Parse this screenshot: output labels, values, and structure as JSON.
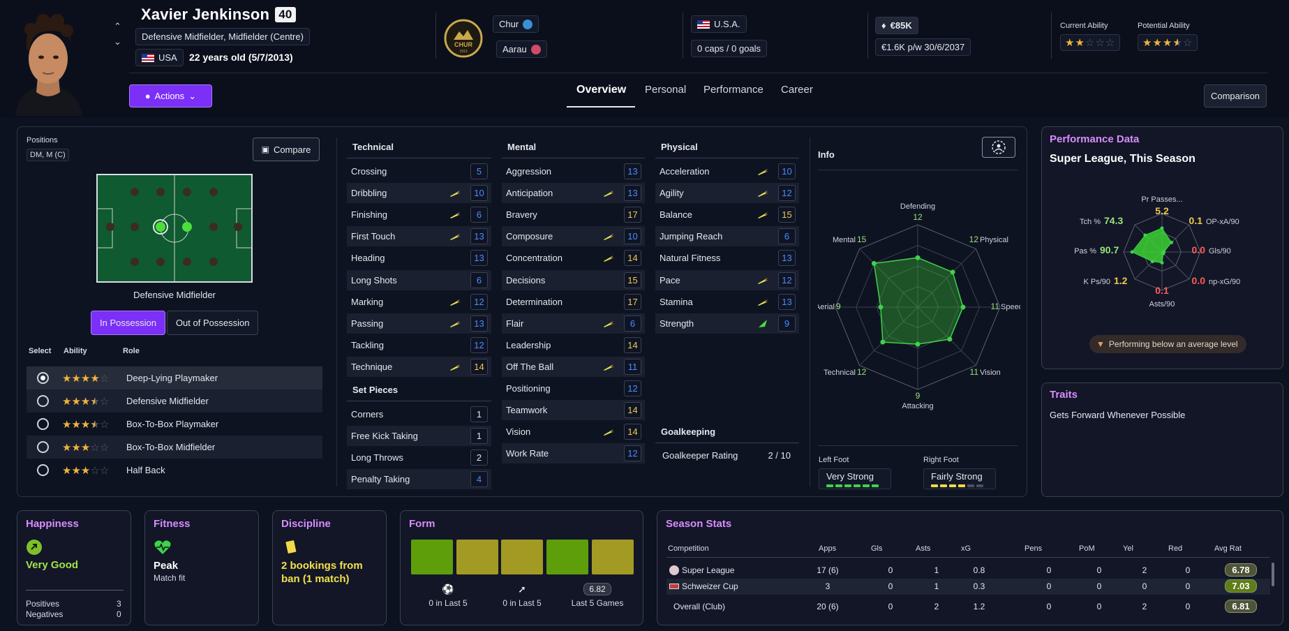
{
  "player": {
    "name": "Xavier Jenkinson",
    "overall": "40",
    "positions": "Defensive Midfielder, Midfielder (Centre)",
    "nation": "USA",
    "age": "22 years old (5/7/2013)"
  },
  "club": {
    "logo_text": "CHUR",
    "logo_year": "1913",
    "current_club": "Chur",
    "loan_club": "Aarau"
  },
  "international": {
    "nation": "U.S.A.",
    "caps": "0 caps / 0 goals"
  },
  "contract": {
    "value": "€85K",
    "wage": "€1.6K p/w 30/6/2037"
  },
  "ability": {
    "current_label": "Current Ability",
    "potential_label": "Potential Ability",
    "current_stars": 2,
    "potential_stars": 3.5
  },
  "actions_label": "Actions",
  "tabs": [
    {
      "label": "Overview",
      "active": true
    },
    {
      "label": "Personal",
      "active": false
    },
    {
      "label": "Performance",
      "active": false
    },
    {
      "label": "Career",
      "active": false
    }
  ],
  "comparison_label": "Comparison",
  "positions_panel": {
    "label": "Positions",
    "chip": "DM, M (C)",
    "compare_label": "Compare",
    "caption": "Defensive Midfielder",
    "in_possession": "In Possession",
    "out_possession": "Out of Possession",
    "head_select": "Select",
    "head_ability": "Ability",
    "head_role": "Role",
    "roles": [
      {
        "name": "Deep-Lying Playmaker",
        "stars": 4,
        "selected": true
      },
      {
        "name": "Defensive Midfielder",
        "stars": 3.5,
        "selected": false
      },
      {
        "name": "Box-To-Box Playmaker",
        "stars": 3.5,
        "selected": false
      },
      {
        "name": "Box-To-Box Midfielder",
        "stars": 3,
        "selected": false
      },
      {
        "name": "Half Back",
        "stars": 3,
        "selected": false
      }
    ]
  },
  "attributes": {
    "technical_title": "Technical",
    "technical": [
      {
        "name": "Crossing",
        "value": "5",
        "color": "blue",
        "arrow": ""
      },
      {
        "name": "Dribbling",
        "value": "10",
        "color": "blue",
        "arrow": "up"
      },
      {
        "name": "Finishing",
        "value": "6",
        "color": "blue",
        "arrow": "up"
      },
      {
        "name": "First Touch",
        "value": "13",
        "color": "blue",
        "arrow": "up"
      },
      {
        "name": "Heading",
        "value": "13",
        "color": "blue",
        "arrow": ""
      },
      {
        "name": "Long Shots",
        "value": "6",
        "color": "blue",
        "arrow": ""
      },
      {
        "name": "Marking",
        "value": "12",
        "color": "blue",
        "arrow": "up"
      },
      {
        "name": "Passing",
        "value": "13",
        "color": "blue",
        "arrow": "up"
      },
      {
        "name": "Tackling",
        "value": "12",
        "color": "blue",
        "arrow": ""
      },
      {
        "name": "Technique",
        "value": "14",
        "color": "yellow",
        "arrow": "up"
      }
    ],
    "setpieces_title": "Set Pieces",
    "setpieces": [
      {
        "name": "Corners",
        "value": "1",
        "color": "white",
        "arrow": ""
      },
      {
        "name": "Free Kick Taking",
        "value": "1",
        "color": "white",
        "arrow": ""
      },
      {
        "name": "Long Throws",
        "value": "2",
        "color": "white",
        "arrow": ""
      },
      {
        "name": "Penalty Taking",
        "value": "4",
        "color": "blue",
        "arrow": ""
      }
    ],
    "mental_title": "Mental",
    "mental": [
      {
        "name": "Aggression",
        "value": "13",
        "color": "blue",
        "arrow": ""
      },
      {
        "name": "Anticipation",
        "value": "13",
        "color": "blue",
        "arrow": "up"
      },
      {
        "name": "Bravery",
        "value": "17",
        "color": "yellow",
        "arrow": ""
      },
      {
        "name": "Composure",
        "value": "10",
        "color": "blue",
        "arrow": "up"
      },
      {
        "name": "Concentration",
        "value": "14",
        "color": "yellow",
        "arrow": "up"
      },
      {
        "name": "Decisions",
        "value": "15",
        "color": "yellow",
        "arrow": ""
      },
      {
        "name": "Determination",
        "value": "17",
        "color": "yellow",
        "arrow": ""
      },
      {
        "name": "Flair",
        "value": "6",
        "color": "blue",
        "arrow": "up"
      },
      {
        "name": "Leadership",
        "value": "14",
        "color": "yellow",
        "arrow": ""
      },
      {
        "name": "Off The Ball",
        "value": "11",
        "color": "blue",
        "arrow": "up"
      },
      {
        "name": "Positioning",
        "value": "12",
        "color": "blue",
        "arrow": ""
      },
      {
        "name": "Teamwork",
        "value": "14",
        "color": "yellow",
        "arrow": ""
      },
      {
        "name": "Vision",
        "value": "14",
        "color": "yellow",
        "arrow": "up"
      },
      {
        "name": "Work Rate",
        "value": "12",
        "color": "blue",
        "arrow": ""
      }
    ],
    "physical_title": "Physical",
    "physical": [
      {
        "name": "Acceleration",
        "value": "10",
        "color": "blue",
        "arrow": "up"
      },
      {
        "name": "Agility",
        "value": "12",
        "color": "blue",
        "arrow": "up"
      },
      {
        "name": "Balance",
        "value": "15",
        "color": "yellow",
        "arrow": "up"
      },
      {
        "name": "Jumping Reach",
        "value": "6",
        "color": "blue",
        "arrow": ""
      },
      {
        "name": "Natural Fitness",
        "value": "13",
        "color": "blue",
        "arrow": ""
      },
      {
        "name": "Pace",
        "value": "12",
        "color": "blue",
        "arrow": "up"
      },
      {
        "name": "Stamina",
        "value": "13",
        "color": "blue",
        "arrow": "up"
      },
      {
        "name": "Strength",
        "value": "9",
        "color": "blue",
        "arrow": "up-green"
      }
    ],
    "goalkeeping_title": "Goalkeeping",
    "goalkeeper_label": "Goalkeeper Rating",
    "goalkeeper_value": "2 / 10"
  },
  "info": {
    "title": "Info",
    "radar": [
      {
        "label": "Defending",
        "value": "12"
      },
      {
        "label": "Physical",
        "value": "12"
      },
      {
        "label": "Speed",
        "value": "11"
      },
      {
        "label": "Vision",
        "value": "11"
      },
      {
        "label": "Attacking",
        "value": "9"
      },
      {
        "label": "Technical",
        "value": "12"
      },
      {
        "label": "Aerial",
        "value": "9"
      },
      {
        "label": "Mental",
        "value": "15"
      }
    ],
    "left_foot_label": "Left Foot",
    "left_foot": "Very Strong",
    "left_foot_level": 6,
    "right_foot_label": "Right Foot",
    "right_foot": "Fairly Strong",
    "right_foot_level": 4
  },
  "performance": {
    "title": "Performance Data",
    "subtitle": "Super League, This Season",
    "metrics": [
      {
        "label": "Pr Passes...",
        "value": "5.2",
        "color": "#f2c94c"
      },
      {
        "label": "OP-xA/90",
        "value": "0.1",
        "color": "#f2c94c"
      },
      {
        "label": "Gls/90",
        "value": "0.0",
        "color": "#ff5a5a"
      },
      {
        "label": "np-xG/90",
        "value": "0.0",
        "color": "#ff5a5a"
      },
      {
        "label": "Asts/90",
        "value": "0.1",
        "color": "#ff5a5a"
      },
      {
        "label": "K Ps/90",
        "value": "1.2",
        "color": "#f2c94c"
      },
      {
        "label": "Pas %",
        "value": "90.7",
        "color": "#9be27a"
      },
      {
        "label": "Tch %",
        "value": "74.3",
        "color": "#9be27a"
      }
    ],
    "note": "Performing below an average level"
  },
  "traits": {
    "title": "Traits",
    "items": [
      "Gets Forward Whenever Possible"
    ]
  },
  "happiness": {
    "title": "Happiness",
    "status": "Very Good",
    "positives_label": "Positives",
    "positives": "3",
    "negatives_label": "Negatives",
    "negatives": "0"
  },
  "fitness": {
    "title": "Fitness",
    "status": "Peak",
    "sub": "Match fit"
  },
  "discipline": {
    "title": "Discipline",
    "status": "2 bookings from ban (1 match)"
  },
  "form": {
    "title": "Form",
    "games": [
      "#5e9e0b",
      "#a39a23",
      "#a39a23",
      "#5e9e0b",
      "#a39a23"
    ],
    "goals_label": "0 in Last 5",
    "assists_label": "0 in Last 5",
    "avg": "6.82",
    "avg_label": "Last 5 Games"
  },
  "season": {
    "title": "Season Stats",
    "headers": [
      "Competition",
      "Apps",
      "Gls",
      "Asts",
      "xG",
      "Pens",
      "PoM",
      "Yel",
      "Red",
      "Avg Rat"
    ],
    "rows": [
      {
        "comp": "Super League",
        "apps": "17 (6)",
        "gls": "0",
        "asts": "1",
        "xg": "0.8",
        "pens": "0",
        "pom": "0",
        "yel": "2",
        "red": "0",
        "rat": "6.78",
        "rat_color": "#4e5439"
      },
      {
        "comp": "Schweizer Cup",
        "apps": "3",
        "gls": "0",
        "asts": "1",
        "xg": "0.3",
        "pens": "0",
        "pom": "0",
        "yel": "0",
        "red": "0",
        "rat": "7.03",
        "rat_color": "#5f7d18"
      },
      {
        "comp": "Overall (Club)",
        "apps": "20 (6)",
        "gls": "0",
        "asts": "2",
        "xg": "1.2",
        "pens": "0",
        "pom": "0",
        "yel": "2",
        "red": "0",
        "rat": "6.81",
        "rat_color": "#4e5439"
      }
    ]
  }
}
